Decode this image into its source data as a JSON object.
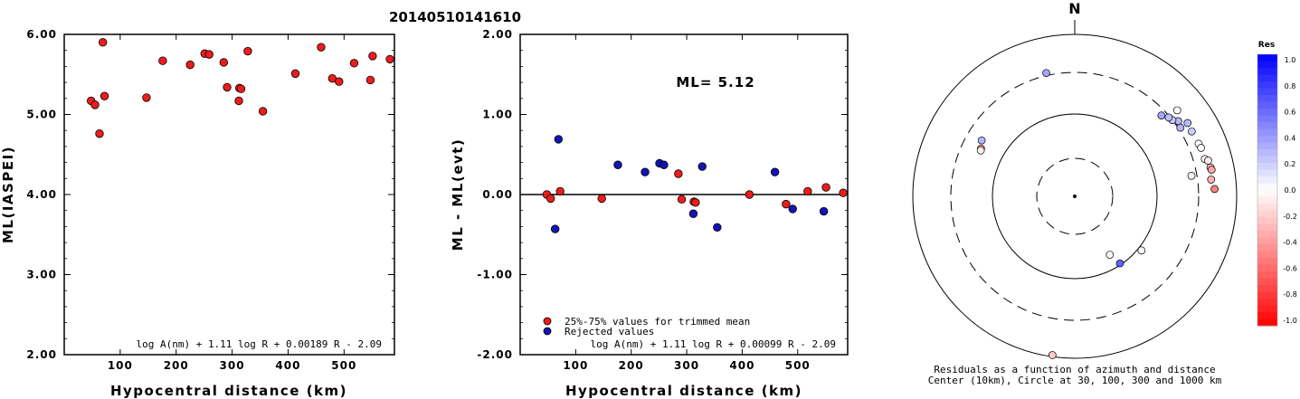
{
  "title": "20140510141610",
  "chart_data": [
    {
      "type": "scatter",
      "xlabel": "Hypocentral distance (km)",
      "ylabel": "ML(IASPEI)",
      "xlim": [
        0,
        590
      ],
      "ylim": [
        2.0,
        6.0
      ],
      "x_ticks": [
        100,
        200,
        300,
        400,
        500
      ],
      "x_tick_labels": [
        "100",
        "200",
        "300",
        "400",
        "500"
      ],
      "y_ticks": [
        2.0,
        3.0,
        4.0,
        5.0,
        6.0
      ],
      "y_tick_labels": [
        "2.00",
        "3.00",
        "4.00",
        "5.00",
        "6.00"
      ],
      "formula": "log A(nm) + 1.11 log R + 0.00189 R - 2.09",
      "points": [
        {
          "x": 48,
          "y": 5.17
        },
        {
          "x": 55,
          "y": 5.12
        },
        {
          "x": 63,
          "y": 4.76
        },
        {
          "x": 69,
          "y": 5.9
        },
        {
          "x": 72,
          "y": 5.23
        },
        {
          "x": 147,
          "y": 5.21
        },
        {
          "x": 176,
          "y": 5.67
        },
        {
          "x": 225,
          "y": 5.62
        },
        {
          "x": 251,
          "y": 5.76
        },
        {
          "x": 259,
          "y": 5.75
        },
        {
          "x": 285,
          "y": 5.65
        },
        {
          "x": 291,
          "y": 5.34
        },
        {
          "x": 312,
          "y": 5.17
        },
        {
          "x": 313,
          "y": 5.33
        },
        {
          "x": 316,
          "y": 5.32
        },
        {
          "x": 328,
          "y": 5.79
        },
        {
          "x": 355,
          "y": 5.04
        },
        {
          "x": 413,
          "y": 5.51
        },
        {
          "x": 459,
          "y": 5.84
        },
        {
          "x": 479,
          "y": 5.45
        },
        {
          "x": 491,
          "y": 5.41
        },
        {
          "x": 518,
          "y": 5.64
        },
        {
          "x": 547,
          "y": 5.43
        },
        {
          "x": 551,
          "y": 5.73
        },
        {
          "x": 582,
          "y": 5.69
        }
      ],
      "point_color": "#ee1c1c"
    },
    {
      "type": "scatter",
      "xlabel": "Hypocentral distance (km)",
      "ylabel": "ML - ML(evt)",
      "xlim": [
        0,
        590
      ],
      "ylim": [
        -2.0,
        2.0
      ],
      "x_ticks": [
        100,
        200,
        300,
        400,
        500
      ],
      "x_tick_labels": [
        "100",
        "200",
        "300",
        "400",
        "500"
      ],
      "y_ticks": [
        -2.0,
        -1.0,
        0.0,
        1.0,
        2.0
      ],
      "y_tick_labels": [
        "-2.00",
        "-1.00",
        "0.00",
        "1.00",
        "2.00"
      ],
      "zero_line": true,
      "annotation": "ML= 5.12",
      "legend": [
        {
          "label": "25%-75% values for trimmed mean",
          "color": "#ee1c1c"
        },
        {
          "label": "Rejected values",
          "color": "#1414b4"
        }
      ],
      "formula": "log A(nm) + 1.11 log R + 0.00099 R - 2.09",
      "series": [
        {
          "name": "25%-75% values for trimmed mean",
          "color": "#ee1c1c",
          "points": [
            {
              "x": 48,
              "y": 0.0
            },
            {
              "x": 55,
              "y": -0.05
            },
            {
              "x": 72,
              "y": 0.04
            },
            {
              "x": 147,
              "y": -0.05
            },
            {
              "x": 285,
              "y": 0.26
            },
            {
              "x": 291,
              "y": -0.06
            },
            {
              "x": 313,
              "y": -0.09
            },
            {
              "x": 316,
              "y": -0.1
            },
            {
              "x": 413,
              "y": 0.0
            },
            {
              "x": 479,
              "y": -0.12
            },
            {
              "x": 518,
              "y": 0.04
            },
            {
              "x": 551,
              "y": 0.09
            },
            {
              "x": 582,
              "y": 0.02
            }
          ]
        },
        {
          "name": "Rejected values",
          "color": "#1414b4",
          "points": [
            {
              "x": 63,
              "y": -0.43
            },
            {
              "x": 69,
              "y": 0.69
            },
            {
              "x": 176,
              "y": 0.37
            },
            {
              "x": 225,
              "y": 0.28
            },
            {
              "x": 251,
              "y": 0.39
            },
            {
              "x": 259,
              "y": 0.37
            },
            {
              "x": 312,
              "y": -0.24
            },
            {
              "x": 328,
              "y": 0.35
            },
            {
              "x": 355,
              "y": -0.41
            },
            {
              "x": 459,
              "y": 0.28
            },
            {
              "x": 491,
              "y": -0.18
            },
            {
              "x": 547,
              "y": -0.21
            }
          ]
        }
      ]
    },
    {
      "type": "scatter",
      "subtype": "polar",
      "north_label": "N",
      "caption_line1": "Residuals as a function of azimuth and distance",
      "caption_line2": "Center (10km), Circle at 30, 100, 300 and 1000 km",
      "colorbar": {
        "title": "Res",
        "ticks": [
          "1.0",
          "0.8",
          "0.6",
          "0.4",
          "0.2",
          "0.0",
          "-0.2",
          "-0.4",
          "-0.6",
          "-0.8",
          "-1.0"
        ],
        "top_color": "#0000ff",
        "bottom_color": "#ff0000"
      },
      "points": [
        {
          "az": 347,
          "dist": 326,
          "res": 0.35
        },
        {
          "az": 301,
          "dist": 200,
          "res": 0.3
        },
        {
          "az": 297,
          "dist": 183,
          "res": -0.45
        },
        {
          "az": 296,
          "dist": 180,
          "res": -0.05
        },
        {
          "az": 54,
          "dist": 340,
          "res": 0.28
        },
        {
          "az": 52,
          "dist": 300,
          "res": 0.22
        },
        {
          "az": 47,
          "dist": 260,
          "res": 0.35
        },
        {
          "az": 50,
          "dist": 290,
          "res": 0.25
        },
        {
          "az": 57,
          "dist": 320,
          "res": 0.3
        },
        {
          "az": 50,
          "dist": 410,
          "res": -0.02
        },
        {
          "az": 57,
          "dist": 420,
          "res": 0.27
        },
        {
          "az": 61,
          "dist": 410,
          "res": 0.2
        },
        {
          "az": 67,
          "dist": 420,
          "res": 0.0
        },
        {
          "az": 69,
          "dist": 430,
          "res": -0.03
        },
        {
          "az": 74,
          "dist": 430,
          "res": -0.04
        },
        {
          "az": 75,
          "dist": 470,
          "res": -0.07
        },
        {
          "az": 78,
          "dist": 480,
          "res": -0.22
        },
        {
          "az": 79,
          "dist": 490,
          "res": -0.35
        },
        {
          "az": 87,
          "dist": 500,
          "res": -0.5
        },
        {
          "az": 83,
          "dist": 460,
          "res": -0.3
        },
        {
          "az": 80,
          "dist": 260,
          "res": -0.05
        },
        {
          "az": 129,
          "dist": 110,
          "res": -0.01
        },
        {
          "az": 149,
          "dist": 68,
          "res": -0.03
        },
        {
          "az": 146,
          "dist": 96,
          "res": 0.62
        },
        {
          "az": 188,
          "dist": 950,
          "res": -0.2
        }
      ]
    }
  ]
}
